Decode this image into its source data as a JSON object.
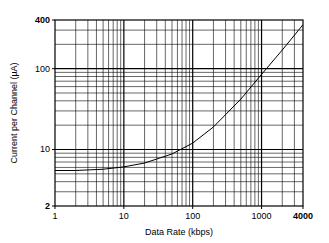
{
  "chart_data": {
    "type": "line",
    "x_label": "Data Rate (kbps)",
    "y_label": "Current per Channel (µA)",
    "log": true,
    "grid": true,
    "xlim": [
      1,
      4000
    ],
    "xticks": [
      1,
      10,
      100,
      1000,
      4000
    ],
    "ylim": [
      2,
      400
    ],
    "yticks": [
      2,
      10,
      100,
      400
    ],
    "series": [
      {
        "color": "#000000",
        "x": [
          1,
          2,
          5,
          10,
          20,
          50,
          100,
          200,
          500,
          1000,
          2000,
          4000
        ],
        "values": [
          5.5,
          5.5,
          5.7,
          6.1,
          6.8,
          8.8,
          12,
          19,
          42,
          85,
          170,
          350
        ]
      }
    ]
  }
}
